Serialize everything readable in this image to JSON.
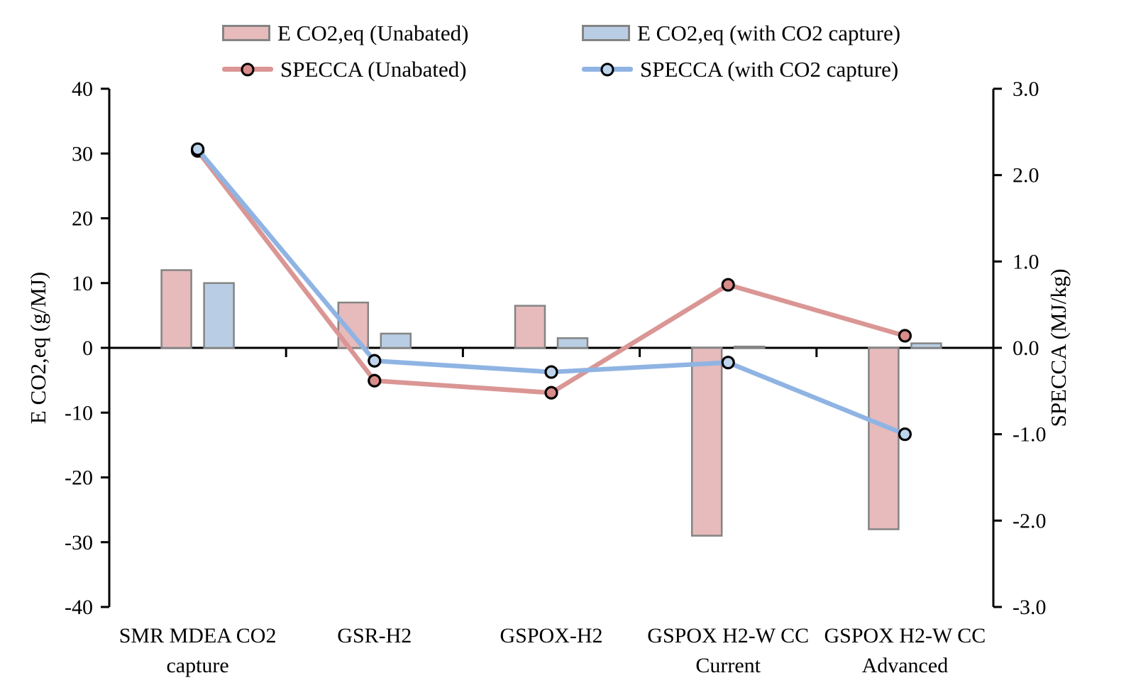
{
  "chart_data": {
    "type": "combo-bar-line-dual-axis",
    "categories": [
      "SMR MDEA CO2\ncapture",
      "GSR-H2",
      "GSPOX-H2",
      "GSPOX H2-W CC\nCurrent",
      "GSPOX H2-W CC\nAdvanced"
    ],
    "bar_series": [
      {
        "name": "E CO2,eq (Unabated)",
        "axis": "left",
        "fill": "#e7babb",
        "border": "#848484",
        "values": [
          12.0,
          7.0,
          6.5,
          -29.0,
          -28.0
        ]
      },
      {
        "name": "E CO2,eq (with CO2 capture)",
        "axis": "left",
        "fill": "#b9cde4",
        "border": "#848484",
        "values": [
          10.0,
          2.2,
          1.5,
          0.2,
          0.7
        ]
      }
    ],
    "line_series": [
      {
        "name": "SPECCA (Unabated)",
        "axis": "right",
        "line_color": "#da9694",
        "marker_fill": "#d98c8a",
        "marker_stroke": "#000000",
        "values": [
          2.28,
          -0.38,
          -0.52,
          0.73,
          0.14
        ]
      },
      {
        "name": "SPECCA (with CO2 capture)",
        "axis": "right",
        "line_color": "#8fb4e3",
        "marker_fill": "#bdd4ec",
        "marker_stroke": "#000000",
        "values": [
          2.3,
          -0.15,
          -0.28,
          -0.17,
          -1.0
        ]
      }
    ],
    "left_axis": {
      "label": "E CO2,eq (g/MJ)",
      "min": -40,
      "max": 40,
      "tick_step": 10,
      "ticks": [
        "40",
        "30",
        "20",
        "10",
        "0",
        "-10",
        "-20",
        "-30",
        "-40"
      ]
    },
    "right_axis": {
      "label": "SPECCA (MJ/kg)",
      "min": -3,
      "max": 3,
      "tick_step": 1,
      "ticks": [
        "3.0",
        "2.0",
        "1.0",
        "0.0",
        "-1.0",
        "-2.0",
        "-3.0"
      ]
    },
    "axis_color": "#000000",
    "legend": {
      "items": [
        {
          "label": "E CO2,eq (Unabated)",
          "type": "swatch"
        },
        {
          "label": "E CO2,eq (with CO2 capture)",
          "type": "swatch"
        },
        {
          "label": "SPECCA (Unabated)",
          "type": "line-marker"
        },
        {
          "label": "SPECCA (with CO2 capture)",
          "type": "line-marker"
        }
      ]
    },
    "grid": false,
    "legend_position": "top"
  }
}
